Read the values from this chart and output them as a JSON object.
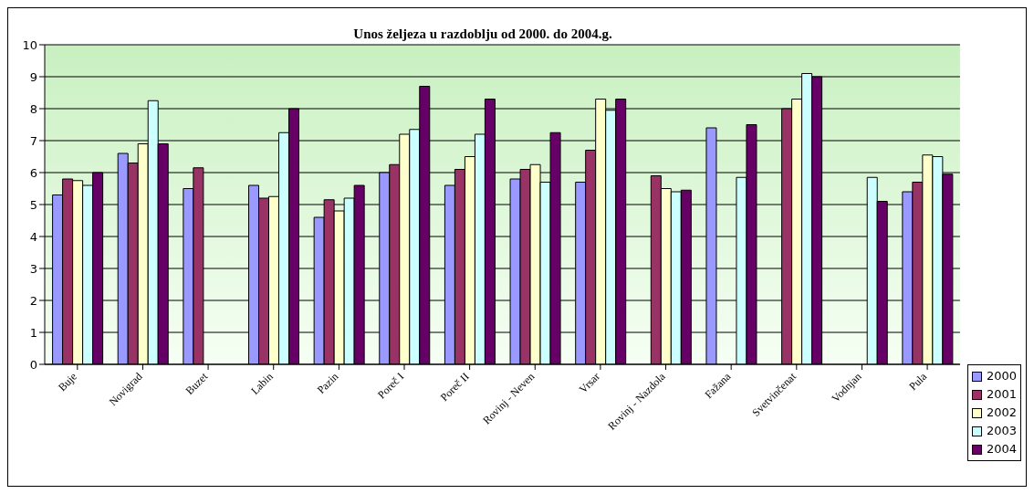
{
  "chart_data": {
    "type": "bar",
    "title": "Unos željeza u razdoblju od 2000. do 2004.g.",
    "categories": [
      "Buje",
      "Novigrad",
      "Buzet",
      "Labin",
      "Pazin",
      "Poreč I",
      "Poreč II",
      "Rovinj - Neven",
      "Vrsar",
      "Rovinj - Nazdola",
      "Fažana",
      "Svetvinčenat",
      "Vodnjan",
      "Pula"
    ],
    "series": [
      {
        "name": "2000",
        "color": "#9999ff",
        "values": [
          5.3,
          6.6,
          5.5,
          5.6,
          4.6,
          6.0,
          5.6,
          5.8,
          5.7,
          null,
          7.4,
          null,
          null,
          5.4
        ]
      },
      {
        "name": "2001",
        "color": "#993366",
        "values": [
          5.8,
          6.3,
          6.15,
          5.2,
          5.15,
          6.25,
          6.1,
          6.1,
          6.7,
          5.9,
          null,
          8.0,
          null,
          5.7
        ]
      },
      {
        "name": "2002",
        "color": "#ffffcc",
        "values": [
          5.75,
          6.9,
          null,
          5.25,
          4.8,
          7.2,
          6.5,
          6.25,
          8.3,
          5.5,
          null,
          8.3,
          null,
          6.55
        ]
      },
      {
        "name": "2003",
        "color": "#ccffff",
        "values": [
          5.6,
          8.25,
          null,
          7.25,
          5.2,
          7.35,
          7.2,
          5.7,
          7.95,
          5.4,
          5.85,
          9.1,
          5.85,
          6.5
        ]
      },
      {
        "name": "2004",
        "color": "#660066",
        "values": [
          6.0,
          6.9,
          null,
          8.0,
          5.6,
          8.7,
          8.3,
          7.25,
          8.3,
          5.45,
          7.5,
          9.0,
          5.1,
          5.95
        ]
      }
    ],
    "ylim": [
      0,
      10
    ],
    "yticks": [
      0,
      1,
      2,
      3,
      4,
      5,
      6,
      7,
      8,
      9,
      10
    ],
    "grid": "y",
    "legend": "bottom right"
  }
}
